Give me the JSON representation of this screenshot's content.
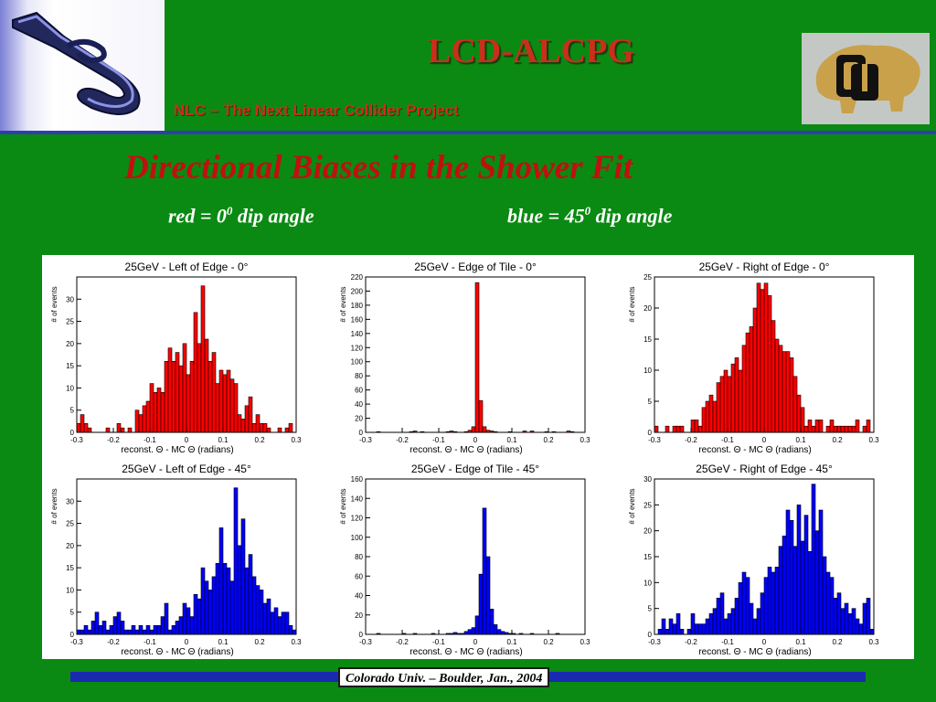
{
  "header": {
    "title": "LCD-ALCPG",
    "subtitle": "NLC – The Next Linear Collider Project"
  },
  "slide": {
    "title": "Directional Biases in the Shower Fit",
    "legend_red": {
      "prefix": "red = 0",
      "sup": "0",
      "suffix": " dip angle"
    },
    "legend_blue": {
      "prefix": "blue = 45",
      "sup": "0",
      "suffix": "  dip angle"
    }
  },
  "footer": {
    "text": "Colorado Univ. – Boulder, Jan., 2004"
  },
  "colors": {
    "background": "#0a8a12",
    "title_red": "#c11010",
    "header_red": "#c8301a",
    "rule_blue": "#2e40a8",
    "hist_red": "#ff0000",
    "hist_blue": "#0000ff"
  },
  "chart_data": [
    {
      "type": "bar",
      "title": "25GeV - Left of Edge - 0°",
      "xlabel": "reconst. Θ - MC Θ (radians)",
      "ylabel": "# of events",
      "color": "#ff0000",
      "xlim": [
        -0.3,
        0.3
      ],
      "ylim": [
        0,
        35
      ],
      "xticks": [
        "-0.3",
        "-0.2",
        "-0.1",
        "0",
        "0.1",
        "0.2",
        "0.3"
      ],
      "yticks": [
        0,
        5,
        10,
        15,
        20,
        25,
        30
      ],
      "bin_start": -0.3,
      "bin_width": 0.01,
      "values": [
        2,
        4,
        2,
        1,
        0,
        0,
        0,
        0,
        1,
        0,
        0,
        2,
        1,
        0,
        1,
        0,
        5,
        4,
        6,
        7,
        11,
        9,
        10,
        9,
        16,
        19,
        16,
        18,
        15,
        20,
        13,
        16,
        27,
        20,
        33,
        21,
        16,
        18,
        11,
        14,
        13,
        14,
        12,
        11,
        4,
        3,
        6,
        8,
        2,
        4,
        2,
        2,
        1,
        0,
        0,
        1,
        0,
        1,
        2,
        0
      ]
    },
    {
      "type": "bar",
      "title": "25GeV - Edge of Tile - 0°",
      "xlabel": "reconst. Θ - MC Θ (radians)",
      "ylabel": "# of events",
      "color": "#ff0000",
      "xlim": [
        -0.3,
        0.3
      ],
      "ylim": [
        0,
        220
      ],
      "xticks": [
        "-0.3",
        "-0.2",
        "-0.1",
        "0",
        "0.1",
        "0.2",
        "0.3"
      ],
      "yticks": [
        0,
        20,
        40,
        60,
        80,
        100,
        120,
        140,
        160,
        180,
        200,
        220
      ],
      "bin_start": -0.3,
      "bin_width": 0.01,
      "values": [
        0,
        0,
        0,
        1,
        0,
        0,
        0,
        0,
        0,
        0,
        0,
        0,
        1,
        2,
        0,
        1,
        0,
        0,
        0,
        0,
        0,
        0,
        1,
        2,
        1,
        0,
        0,
        1,
        3,
        8,
        212,
        45,
        8,
        3,
        2,
        1,
        0,
        0,
        0,
        1,
        0,
        0,
        0,
        2,
        0,
        2,
        0,
        0,
        0,
        1,
        0,
        1,
        0,
        0,
        0,
        2,
        1,
        0,
        0,
        0
      ]
    },
    {
      "type": "bar",
      "title": "25GeV - Right of Edge - 0°",
      "xlabel": "reconst. Θ - MC Θ (radians)",
      "ylabel": "# of events",
      "color": "#ff0000",
      "xlim": [
        -0.3,
        0.3
      ],
      "ylim": [
        0,
        25
      ],
      "xticks": [
        "-0.3",
        "-0.2",
        "-0.1",
        "0",
        "0.1",
        "0.2",
        "0.3"
      ],
      "yticks": [
        0,
        5,
        10,
        15,
        20,
        25
      ],
      "bin_start": -0.3,
      "bin_width": 0.01,
      "values": [
        1,
        0,
        0,
        1,
        0,
        1,
        1,
        1,
        0,
        0,
        2,
        2,
        1,
        4,
        5,
        6,
        5,
        8,
        9,
        10,
        9,
        11,
        12,
        10,
        14,
        16,
        17,
        20,
        24,
        23,
        24,
        22,
        18,
        15,
        14,
        13,
        13,
        12,
        9,
        6,
        4,
        1,
        2,
        1,
        2,
        2,
        0,
        1,
        2,
        1,
        1,
        1,
        1,
        1,
        1,
        2,
        0,
        1,
        2,
        0
      ]
    },
    {
      "type": "bar",
      "title": "25GeV - Left of Edge - 45°",
      "xlabel": "reconst. Θ - MC Θ (radians)",
      "ylabel": "# of events",
      "color": "#0000ff",
      "xlim": [
        -0.3,
        0.3
      ],
      "ylim": [
        0,
        35
      ],
      "xticks": [
        "-0.3",
        "-0.2",
        "-0.1",
        "0",
        "0.1",
        "0.2",
        "0.3"
      ],
      "yticks": [
        0,
        5,
        10,
        15,
        20,
        25,
        30
      ],
      "bin_start": -0.3,
      "bin_width": 0.01,
      "values": [
        1,
        1,
        2,
        1,
        3,
        5,
        2,
        3,
        1,
        2,
        4,
        5,
        3,
        1,
        1,
        2,
        1,
        2,
        1,
        2,
        1,
        2,
        2,
        4,
        7,
        1,
        2,
        3,
        4,
        7,
        6,
        4,
        9,
        8,
        15,
        12,
        10,
        13,
        16,
        24,
        16,
        15,
        12,
        33,
        20,
        26,
        15,
        18,
        13,
        11,
        10,
        7,
        8,
        5,
        6,
        4,
        5,
        5,
        2,
        1
      ]
    },
    {
      "type": "bar",
      "title": "25GeV - Edge of Tile - 45°",
      "xlabel": "reconst. Θ - MC Θ (radians)",
      "ylabel": "# of events",
      "color": "#0000ff",
      "xlim": [
        -0.3,
        0.3
      ],
      "ylim": [
        0,
        160
      ],
      "xticks": [
        "-0.3",
        "-0.2",
        "-0.1",
        "0",
        "0.1",
        "0.2",
        "0.3"
      ],
      "yticks": [
        0,
        20,
        40,
        60,
        80,
        100,
        120,
        140,
        160
      ],
      "bin_start": -0.3,
      "bin_width": 0.01,
      "values": [
        0,
        0,
        0,
        1,
        0,
        0,
        0,
        0,
        0,
        0,
        1,
        0,
        0,
        1,
        0,
        0,
        0,
        0,
        1,
        0,
        0,
        0,
        1,
        1,
        2,
        1,
        1,
        3,
        5,
        7,
        19,
        62,
        130,
        80,
        26,
        10,
        5,
        3,
        2,
        1,
        1,
        0,
        1,
        0,
        0,
        1,
        0,
        0,
        0,
        0,
        0,
        0,
        1,
        0,
        0,
        0,
        0,
        0,
        0,
        0
      ]
    },
    {
      "type": "bar",
      "title": "25GeV - Right of Edge - 45°",
      "xlabel": "reconst. Θ - MC Θ (radians)",
      "ylabel": "# of events",
      "color": "#0000ff",
      "xlim": [
        -0.3,
        0.3
      ],
      "ylim": [
        0,
        30
      ],
      "xticks": [
        "-0.3",
        "-0.2",
        "-0.1",
        "0",
        "0.1",
        "0.2",
        "0.3"
      ],
      "yticks": [
        0,
        5,
        10,
        15,
        20,
        25,
        30
      ],
      "bin_start": -0.3,
      "bin_width": 0.01,
      "values": [
        0,
        1,
        3,
        1,
        3,
        2,
        4,
        1,
        0,
        1,
        4,
        2,
        2,
        2,
        3,
        4,
        5,
        7,
        8,
        3,
        4,
        5,
        7,
        10,
        12,
        11,
        6,
        3,
        5,
        8,
        11,
        13,
        12,
        13,
        17,
        19,
        24,
        22,
        17,
        25,
        18,
        23,
        16,
        29,
        20,
        24,
        15,
        12,
        11,
        7,
        8,
        5,
        6,
        4,
        5,
        3,
        2,
        6,
        7,
        1
      ]
    }
  ]
}
